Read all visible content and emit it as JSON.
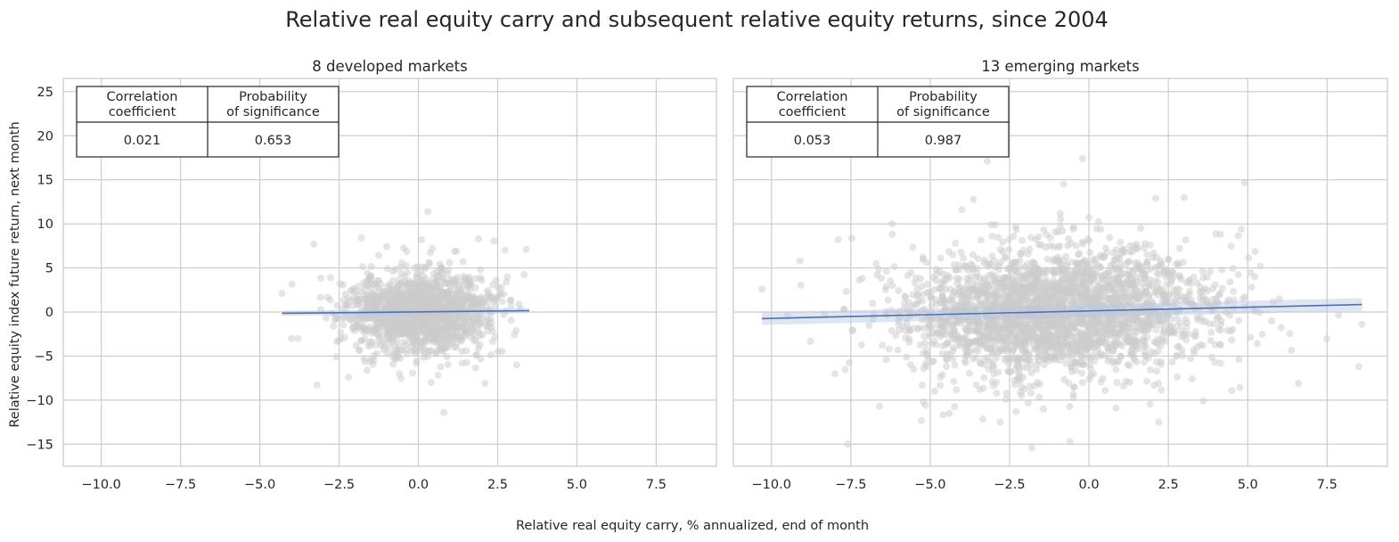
{
  "figure": {
    "title": "Relative real equity carry and subsequent relative equity returns, since 2004",
    "xlabel": "Relative real equity carry, % annualized, end of month",
    "ylabel": "Relative equity index future return, next month"
  },
  "colors": {
    "scatter": "#cccccc",
    "regression_line": "#4c72b0",
    "confidence_band": "#b8c7e0",
    "grid": "#cccccc",
    "spine": "#cccccc"
  },
  "chart_data": [
    {
      "type": "scatter",
      "title": "8 developed markets",
      "xlim": [
        -11.2,
        9.4
      ],
      "ylim": [
        -17.5,
        26.5
      ],
      "xticks": [
        -10.0,
        -7.5,
        -5.0,
        -2.5,
        0.0,
        2.5,
        5.0,
        7.5
      ],
      "xtick_labels": [
        "−10.0",
        "−7.5",
        "−5.0",
        "−2.5",
        "0.0",
        "2.5",
        "5.0",
        "7.5"
      ],
      "yticks": [
        -15,
        -10,
        -5,
        0,
        5,
        10,
        15,
        20,
        25
      ],
      "ytick_labels": [
        "−15",
        "−10",
        "−5",
        "0",
        "5",
        "10",
        "15",
        "20",
        "25"
      ],
      "grid": true,
      "point_cloud": {
        "n": 1500,
        "x_mean": 0.0,
        "x_sd": 1.15,
        "x_range": [
          -4.3,
          3.5
        ],
        "y_sd": 2.3,
        "y_range": [
          -11.5,
          11.5
        ],
        "seed": 11
      },
      "points": [
        [
          -3.3,
          7.7
        ],
        [
          -3.2,
          -8.3
        ],
        [
          0.3,
          11.4
        ],
        [
          0.8,
          -11.4
        ],
        [
          -1.8,
          8.4
        ],
        [
          1.9,
          8.3
        ],
        [
          -4.3,
          2.1
        ],
        [
          3.4,
          7.1
        ],
        [
          2.1,
          -8.1
        ],
        [
          -2.2,
          -7.4
        ],
        [
          0.1,
          8.2
        ],
        [
          -0.6,
          -7.0
        ],
        [
          3.1,
          -6.0
        ],
        [
          -4.0,
          -3.0
        ],
        [
          2.8,
          4.0
        ],
        [
          1.2,
          6.9
        ],
        [
          -1.0,
          7.4
        ],
        [
          0.4,
          -8.0
        ]
      ],
      "regression": {
        "x": [
          -4.3,
          3.5
        ],
        "y": [
          -0.15,
          0.15
        ],
        "ci_halfwidth": 0.18
      },
      "stats_table": {
        "headers": [
          "Correlation\ncoefficient",
          "Probability\nof significance"
        ],
        "values": [
          "0.021",
          "0.653"
        ]
      }
    },
    {
      "type": "scatter",
      "title": "13 emerging markets",
      "xlim": [
        -11.2,
        9.4
      ],
      "ylim": [
        -17.5,
        26.5
      ],
      "xticks": [
        -10.0,
        -7.5,
        -5.0,
        -2.5,
        0.0,
        2.5,
        5.0,
        7.5
      ],
      "xtick_labels": [
        "−10.0",
        "−7.5",
        "−5.0",
        "−2.5",
        "0.0",
        "2.5",
        "5.0",
        "7.5"
      ],
      "yticks": [
        -15,
        -10,
        -5,
        0,
        5,
        10,
        15,
        20,
        25
      ],
      "ytick_labels": [],
      "grid": true,
      "point_cloud": {
        "n": 2700,
        "x_mean": -1.0,
        "x_sd": 2.4,
        "x_range": [
          -10.3,
          8.6
        ],
        "y_sd": 3.6,
        "y_range": [
          -15.5,
          17.5
        ],
        "seed": 29
      },
      "points": [
        [
          -10.3,
          2.6
        ],
        [
          -7.6,
          -15.0
        ],
        [
          -1.8,
          -15.4
        ],
        [
          -0.6,
          -14.7
        ],
        [
          -0.2,
          17.4
        ],
        [
          -3.2,
          17.1
        ],
        [
          -0.8,
          14.5
        ],
        [
          4.9,
          14.7
        ],
        [
          3.0,
          13.0
        ],
        [
          2.1,
          12.9
        ],
        [
          4.8,
          9.4
        ],
        [
          6.6,
          -8.1
        ],
        [
          8.5,
          -6.2
        ],
        [
          8.6,
          -1.4
        ],
        [
          6.0,
          1.5
        ],
        [
          -7.9,
          8.2
        ],
        [
          -6.2,
          10.0
        ],
        [
          -4.0,
          11.6
        ],
        [
          -2.8,
          -12.5
        ],
        [
          2.2,
          -12.5
        ],
        [
          -4.4,
          -11.5
        ],
        [
          -6.6,
          -10.7
        ],
        [
          3.6,
          -10.1
        ],
        [
          4.5,
          -8.9
        ],
        [
          5.4,
          5.2
        ],
        [
          -8.0,
          -7.0
        ],
        [
          -9.5,
          -0.4
        ]
      ],
      "regression": {
        "x": [
          -10.3,
          8.6
        ],
        "y": [
          -0.75,
          0.85
        ],
        "ci_halfwidth": 0.45
      },
      "stats_table": {
        "headers": [
          "Correlation\ncoefficient",
          "Probability\nof significance"
        ],
        "values": [
          "0.053",
          "0.987"
        ]
      }
    }
  ]
}
